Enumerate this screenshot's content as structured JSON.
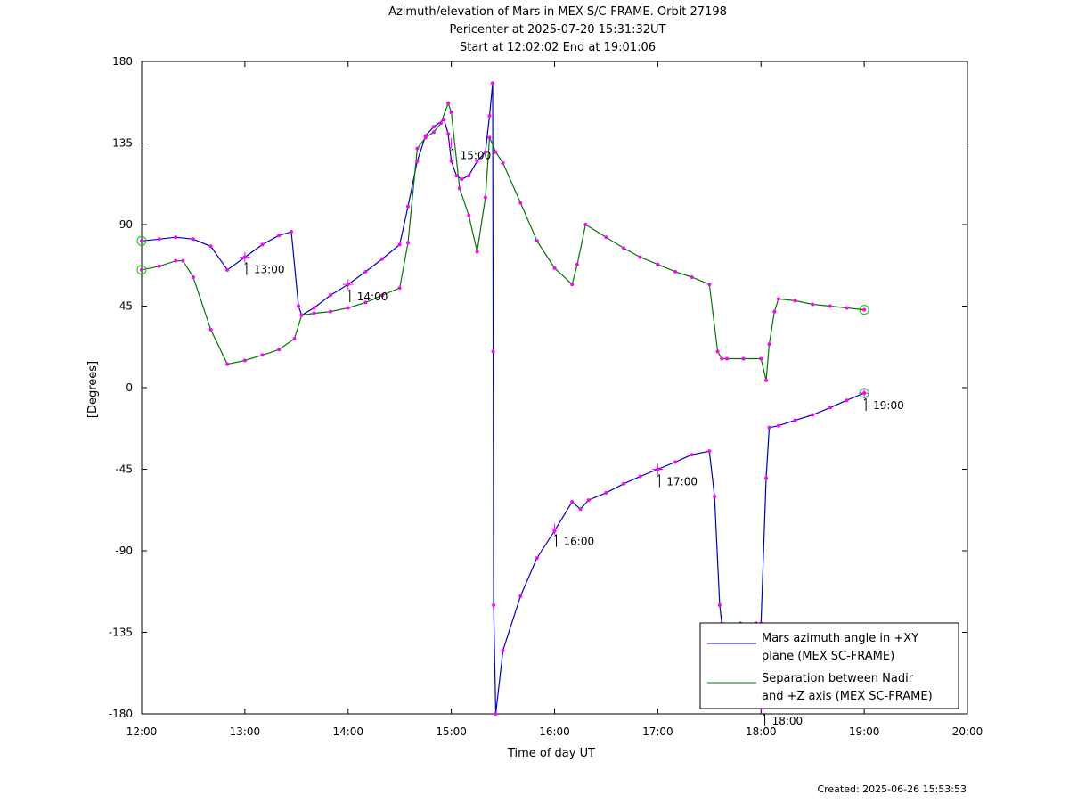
{
  "header": {
    "title": "Azimuth/elevation of Mars in MEX S/C-FRAME.  Orbit 27198",
    "pericenter": "Pericenter at 2025-07-20 15:31:32UT",
    "start_end": "Start at 12:02:02 End at 19:01:06"
  },
  "footer": {
    "created": "Created: 2025-06-26 15:53:53"
  },
  "chart_data": {
    "type": "line",
    "xlabel": "Time of day UT",
    "ylabel": "[Degrees]",
    "xlim": [
      12,
      20
    ],
    "ylim": [
      -180,
      180
    ],
    "x_ticks": [
      "12:00",
      "13:00",
      "14:00",
      "15:00",
      "16:00",
      "17:00",
      "18:00",
      "19:00",
      "20:00"
    ],
    "y_ticks": [
      "180",
      "135",
      "90",
      "45",
      "0",
      "-45",
      "-90",
      "-135",
      "-180"
    ],
    "legend_position": "bottom-right",
    "colors": {
      "azimuth": "#0000cc",
      "separation": "#007700",
      "markers": "#ff00ff"
    },
    "hour_labels": [
      {
        "label": "13:00",
        "x": 13.0,
        "y": 72
      },
      {
        "label": "14:00",
        "x": 14.0,
        "y": 57
      },
      {
        "label": "15:00",
        "x": 15.0,
        "y": 135
      },
      {
        "label": "16:00",
        "x": 16.0,
        "y": -78
      },
      {
        "label": "17:00",
        "x": 17.0,
        "y": -45
      },
      {
        "label": "18:00",
        "x": 18.02,
        "y": -177
      },
      {
        "label": "19:00",
        "x": 19.0,
        "y": -3
      }
    ],
    "series": [
      {
        "name": "Mars azimuth angle in +XY plane (MEX SC-FRAME)",
        "legend_lines": [
          "Mars azimuth angle in +XY",
          "plane (MEX SC-FRAME)"
        ],
        "x": [
          12.0,
          12.17,
          12.33,
          12.5,
          12.67,
          12.83,
          13.0,
          13.17,
          13.33,
          13.45,
          13.52,
          13.55,
          13.67,
          13.83,
          14.0,
          14.17,
          14.33,
          14.5,
          14.58,
          14.67,
          14.75,
          14.83,
          14.93,
          14.97,
          15.0,
          15.05,
          15.1,
          15.17,
          15.25,
          15.33,
          15.37,
          15.4,
          15.405,
          15.41,
          15.43,
          15.5,
          15.67,
          15.83,
          16.0,
          16.17,
          16.25,
          16.33,
          16.5,
          16.67,
          16.83,
          17.0,
          17.17,
          17.33,
          17.5,
          17.55,
          17.6,
          17.62,
          17.8,
          17.95,
          18.0,
          18.05,
          18.08,
          18.17,
          18.33,
          18.5,
          18.67,
          18.83,
          19.0
        ],
        "y": [
          81,
          82,
          83,
          82,
          78,
          65,
          72,
          79,
          84,
          86,
          45,
          40,
          44,
          51,
          57,
          64,
          71,
          79,
          100,
          125,
          139,
          144,
          148,
          140,
          125,
          117,
          115,
          117,
          125,
          130,
          150,
          168,
          20,
          -120,
          -180,
          -145,
          -115,
          -94,
          -79,
          -63,
          -67,
          -62,
          -58,
          -53,
          -49,
          -45,
          -41,
          -37,
          -35,
          -60,
          -120,
          -130,
          -130,
          -130,
          -130,
          -50,
          -22,
          -21,
          -18,
          -15,
          -11,
          -7,
          -3
        ]
      },
      {
        "name": "Separation between Nadir and +Z axis (MEX SC-FRAME)",
        "legend_lines": [
          "Separation between Nadir",
          "and +Z axis (MEX SC-FRAME)"
        ],
        "x": [
          12.0,
          12.17,
          12.33,
          12.4,
          12.5,
          12.67,
          12.83,
          13.0,
          13.17,
          13.33,
          13.48,
          13.55,
          13.67,
          13.83,
          14.0,
          14.17,
          14.33,
          14.5,
          14.58,
          14.67,
          14.75,
          14.83,
          14.9,
          14.97,
          15.0,
          15.08,
          15.17,
          15.25,
          15.33,
          15.37,
          15.43,
          15.5,
          15.67,
          15.83,
          16.0,
          16.17,
          16.22,
          16.3,
          16.5,
          16.67,
          16.83,
          17.0,
          17.17,
          17.33,
          17.5,
          17.58,
          17.62,
          17.67,
          17.83,
          18.0,
          18.05,
          18.08,
          18.13,
          18.17,
          18.33,
          18.5,
          18.67,
          18.83,
          19.0
        ],
        "y": [
          65,
          67,
          70,
          70,
          61,
          32,
          13,
          15,
          18,
          21,
          27,
          40,
          41,
          42,
          44,
          47,
          51,
          55,
          80,
          132,
          138,
          141,
          146,
          157,
          152,
          110,
          95,
          75,
          105,
          138,
          130,
          124,
          102,
          81,
          66,
          57,
          68,
          90,
          83,
          77,
          72,
          68,
          64,
          61,
          57,
          20,
          16,
          16,
          16,
          16,
          4,
          24,
          42,
          49,
          48,
          46,
          45,
          44,
          43
        ]
      }
    ]
  }
}
